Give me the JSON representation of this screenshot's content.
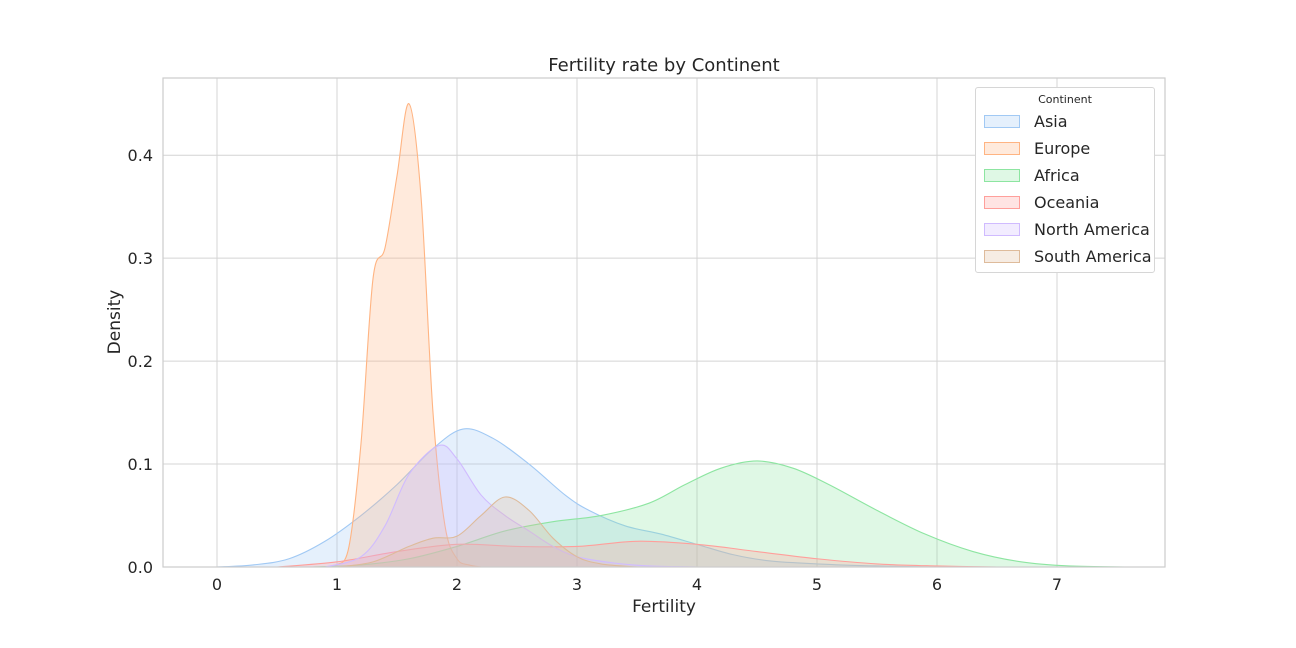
{
  "chart_data": {
    "type": "area",
    "title": "Fertility rate by Continent",
    "xlabel": "Fertility",
    "ylabel": "Density",
    "xlim": [
      -0.45,
      7.9
    ],
    "ylim": [
      0,
      0.475
    ],
    "xticks": [
      0,
      1,
      2,
      3,
      4,
      5,
      6,
      7
    ],
    "yticks": [
      0.0,
      0.1,
      0.2,
      0.3,
      0.4
    ],
    "ytick_labels": [
      "0.0",
      "0.1",
      "0.2",
      "0.3",
      "0.4"
    ],
    "grid": true,
    "legend": {
      "title": "Continent",
      "position": "top-right"
    },
    "series": [
      {
        "name": "Asia",
        "color": "#a1c9f4",
        "points": [
          [
            0.0,
            0.0
          ],
          [
            0.3,
            0.002
          ],
          [
            0.6,
            0.008
          ],
          [
            0.9,
            0.025
          ],
          [
            1.2,
            0.05
          ],
          [
            1.5,
            0.08
          ],
          [
            1.8,
            0.115
          ],
          [
            2.05,
            0.134
          ],
          [
            2.3,
            0.125
          ],
          [
            2.6,
            0.1
          ],
          [
            2.9,
            0.07
          ],
          [
            3.1,
            0.055
          ],
          [
            3.4,
            0.04
          ],
          [
            3.7,
            0.032
          ],
          [
            4.0,
            0.022
          ],
          [
            4.3,
            0.012
          ],
          [
            4.6,
            0.006
          ],
          [
            5.0,
            0.003
          ],
          [
            5.5,
            0.001
          ],
          [
            6.0,
            0.0
          ]
        ]
      },
      {
        "name": "Europe",
        "color": "#ffb482",
        "points": [
          [
            0.9,
            0.0
          ],
          [
            1.0,
            0.002
          ],
          [
            1.1,
            0.02
          ],
          [
            1.2,
            0.12
          ],
          [
            1.3,
            0.28
          ],
          [
            1.4,
            0.31
          ],
          [
            1.5,
            0.38
          ],
          [
            1.6,
            0.45
          ],
          [
            1.7,
            0.36
          ],
          [
            1.8,
            0.15
          ],
          [
            1.9,
            0.04
          ],
          [
            2.0,
            0.008
          ],
          [
            2.1,
            0.002
          ],
          [
            2.2,
            0.0
          ]
        ]
      },
      {
        "name": "Africa",
        "color": "#8de5a1",
        "points": [
          [
            0.8,
            0.0
          ],
          [
            1.2,
            0.002
          ],
          [
            1.6,
            0.008
          ],
          [
            2.0,
            0.02
          ],
          [
            2.4,
            0.035
          ],
          [
            2.8,
            0.044
          ],
          [
            3.2,
            0.05
          ],
          [
            3.6,
            0.062
          ],
          [
            3.9,
            0.08
          ],
          [
            4.2,
            0.096
          ],
          [
            4.5,
            0.103
          ],
          [
            4.8,
            0.096
          ],
          [
            5.1,
            0.08
          ],
          [
            5.5,
            0.055
          ],
          [
            5.9,
            0.032
          ],
          [
            6.3,
            0.015
          ],
          [
            6.7,
            0.005
          ],
          [
            7.1,
            0.001
          ],
          [
            7.6,
            0.0
          ]
        ]
      },
      {
        "name": "Oceania",
        "color": "#ff9f9b",
        "points": [
          [
            0.5,
            0.0
          ],
          [
            1.0,
            0.005
          ],
          [
            1.5,
            0.015
          ],
          [
            2.0,
            0.022
          ],
          [
            2.5,
            0.02
          ],
          [
            3.0,
            0.02
          ],
          [
            3.5,
            0.025
          ],
          [
            4.0,
            0.022
          ],
          [
            4.5,
            0.015
          ],
          [
            5.0,
            0.008
          ],
          [
            5.5,
            0.003
          ],
          [
            6.0,
            0.001
          ],
          [
            6.5,
            0.0
          ]
        ]
      },
      {
        "name": "North America",
        "color": "#d0bbff",
        "points": [
          [
            0.9,
            0.0
          ],
          [
            1.2,
            0.01
          ],
          [
            1.4,
            0.04
          ],
          [
            1.6,
            0.09
          ],
          [
            1.85,
            0.118
          ],
          [
            2.0,
            0.105
          ],
          [
            2.2,
            0.07
          ],
          [
            2.4,
            0.05
          ],
          [
            2.6,
            0.035
          ],
          [
            2.8,
            0.02
          ],
          [
            3.0,
            0.01
          ],
          [
            3.3,
            0.004
          ],
          [
            3.6,
            0.001
          ],
          [
            4.0,
            0.0
          ]
        ]
      },
      {
        "name": "South America",
        "color": "#debb9b",
        "points": [
          [
            1.0,
            0.0
          ],
          [
            1.3,
            0.005
          ],
          [
            1.6,
            0.02
          ],
          [
            1.8,
            0.028
          ],
          [
            2.0,
            0.03
          ],
          [
            2.2,
            0.05
          ],
          [
            2.4,
            0.068
          ],
          [
            2.6,
            0.055
          ],
          [
            2.8,
            0.028
          ],
          [
            3.0,
            0.01
          ],
          [
            3.2,
            0.003
          ],
          [
            3.5,
            0.0
          ]
        ]
      }
    ]
  }
}
